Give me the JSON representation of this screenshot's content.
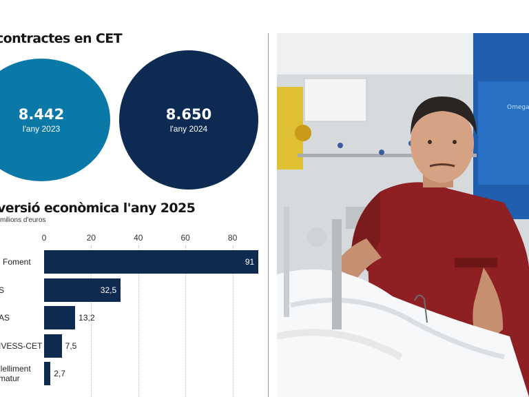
{
  "section1": {
    "title": "contractes en CET"
  },
  "circles": [
    {
      "value": "8.442",
      "label": "l'any 2023",
      "color": "#0b79a8"
    },
    {
      "value": "8.650",
      "label": "l'any 2024",
      "color": "#0c2a52"
    }
  ],
  "section2": {
    "title": "versió econòmica l'any 2025",
    "subtitle": "milions d'euros"
  },
  "chart_data": {
    "type": "bar",
    "orientation": "horizontal",
    "title": "versió econòmica l'any 2025",
    "unit": "milions d'euros",
    "categories": [
      "l Foment",
      "S",
      "AS",
      "IVESS-CET",
      "llelliment matur"
    ],
    "categories_lines": [
      [
        "l Foment"
      ],
      [
        "S"
      ],
      [
        "AS"
      ],
      [
        "IVESS-CET"
      ],
      [
        "llelliment",
        "matur"
      ]
    ],
    "values": [
      91,
      32.5,
      13.2,
      7.5,
      2.7
    ],
    "value_labels": [
      "91",
      "32,5",
      "13,2",
      "7,5",
      "2,7"
    ],
    "xticks": [
      0,
      20,
      40,
      60,
      80
    ],
    "xtick_labels": [
      "0",
      "20",
      "40",
      "60",
      "80"
    ],
    "xlim": [
      0,
      91
    ],
    "bar_color": "#0f2a4f",
    "grid": true
  },
  "photo": {
    "caption_sticker": "Omega"
  }
}
